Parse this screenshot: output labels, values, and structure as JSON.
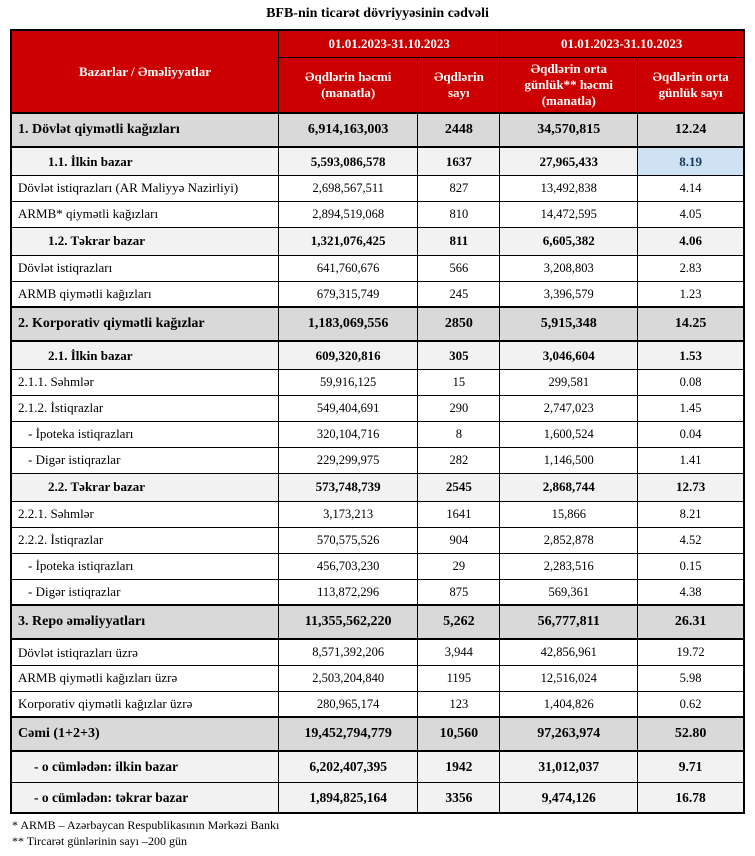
{
  "title": "BFB-nin ticarət dövriyyəsinin cədvəli",
  "colors": {
    "header_bg": "#CC0000",
    "header_text": "#FFFFFF",
    "section_bg": "#D9D9D9",
    "subsection_bg": "#F2F2F2",
    "highlight_bg": "#CFE2F3",
    "highlight_text": "#17375E",
    "border": "#000000"
  },
  "table": {
    "header": {
      "col_markets": "Bazarlar / Əməliyyatlar",
      "period1": "01.01.2023-31.10.2023",
      "period2": "01.01.2023-31.10.2023",
      "sub_volume": "Əqdlərin həcmi (manatla)",
      "sub_count": "Əqdlərin sayı",
      "sub_daily_volume": "Əqdlərin orta günlük** həcmi (manatla)",
      "sub_daily_count": "Əqdlərin orta günlük sayı"
    },
    "rows": [
      {
        "label": "1. Dövlət qiymətli kağızları",
        "values": [
          "6,914,163,003",
          "2448",
          "34,570,815",
          "12.24"
        ],
        "style": "section"
      },
      {
        "label": "1.1. İlkin bazar",
        "values": [
          "5,593,086,578",
          "1637",
          "27,965,433",
          "8.19"
        ],
        "style": "subsection",
        "highlight_last": true
      },
      {
        "label": "Dövlət istiqrazları (AR Maliyyə Nazirliyi)",
        "values": [
          "2,698,567,511",
          "827",
          "13,492,838",
          "4.14"
        ],
        "style": "normal"
      },
      {
        "label": "ARMB* qiymətli kağızları",
        "values": [
          "2,894,519,068",
          "810",
          "14,472,595",
          "4.05"
        ],
        "style": "normal"
      },
      {
        "label": "1.2. Təkrar bazar",
        "values": [
          "1,321,076,425",
          "811",
          "6,605,382",
          "4.06"
        ],
        "style": "subsection"
      },
      {
        "label": "Dövlət istiqrazları",
        "values": [
          "641,760,676",
          "566",
          "3,208,803",
          "2.83"
        ],
        "style": "normal"
      },
      {
        "label": "ARMB qiymətli kağızları",
        "values": [
          "679,315,749",
          "245",
          "3,396,579",
          "1.23"
        ],
        "style": "normal"
      },
      {
        "label": "2. Korporativ qiymətli kağızlar",
        "values": [
          "1,183,069,556",
          "2850",
          "5,915,348",
          "14.25"
        ],
        "style": "section"
      },
      {
        "label": "2.1. İlkin bazar",
        "values": [
          "609,320,816",
          "305",
          "3,046,604",
          "1.53"
        ],
        "style": "subsection"
      },
      {
        "label": "2.1.1. Səhmlər",
        "values": [
          "59,916,125",
          "15",
          "299,581",
          "0.08"
        ],
        "style": "normal"
      },
      {
        "label": "2.1.2. İstiqrazlar",
        "values": [
          "549,404,691",
          "290",
          "2,747,023",
          "1.45"
        ],
        "style": "normal"
      },
      {
        "label": "- İpoteka istiqrazları",
        "values": [
          "320,104,716",
          "8",
          "1,600,524",
          "0.04"
        ],
        "style": "indent"
      },
      {
        "label": "- Digər istiqrazlar",
        "values": [
          "229,299,975",
          "282",
          "1,146,500",
          "1.41"
        ],
        "style": "indent"
      },
      {
        "label": "2.2. Təkrar bazar",
        "values": [
          "573,748,739",
          "2545",
          "2,868,744",
          "12.73"
        ],
        "style": "subsection"
      },
      {
        "label": "2.2.1. Səhmlər",
        "values": [
          "3,173,213",
          "1641",
          "15,866",
          "8.21"
        ],
        "style": "normal"
      },
      {
        "label": "2.2.2. İstiqrazlar",
        "values": [
          "570,575,526",
          "904",
          "2,852,878",
          "4.52"
        ],
        "style": "normal"
      },
      {
        "label": "- İpoteka istiqrazları",
        "values": [
          "456,703,230",
          "29",
          "2,283,516",
          "0.15"
        ],
        "style": "indent"
      },
      {
        "label": "- Digər istiqrazlar",
        "values": [
          "113,872,296",
          "875",
          "569,361",
          "4.38"
        ],
        "style": "indent"
      },
      {
        "label": "3. Repo əməliyyatları",
        "values": [
          "11,355,562,220",
          "5,262",
          "56,777,811",
          "26.31"
        ],
        "style": "section"
      },
      {
        "label": "Dövlət istiqrazları üzrə",
        "values": [
          "8,571,392,206",
          "3,944",
          "42,856,961",
          "19.72"
        ],
        "style": "normal"
      },
      {
        "label": "ARMB qiymətli kağızları üzrə",
        "values": [
          "2,503,204,840",
          "1195",
          "12,516,024",
          "5.98"
        ],
        "style": "normal"
      },
      {
        "label": "Korporativ qiymətli kağızlar üzrə",
        "values": [
          "280,965,174",
          "123",
          "1,404,826",
          "0.62"
        ],
        "style": "normal"
      },
      {
        "label": "Cəmi (1+2+3)",
        "values": [
          "19,452,794,779",
          "10,560",
          "97,263,974",
          "52.80"
        ],
        "style": "section"
      },
      {
        "label": "- o cümlədən: ilkin bazar",
        "values": [
          "6,202,407,395",
          "1942",
          "31,012,037",
          "9.71"
        ],
        "style": "total"
      },
      {
        "label": "- o cümlədən: təkrar bazar",
        "values": [
          "1,894,825,164",
          "3356",
          "9,474,126",
          "16.78"
        ],
        "style": "total"
      }
    ],
    "footnotes": [
      "* ARMB – Azərbaycan Respublikasının Mərkəzi Bankı",
      "** Tircarət günlərinin sayı –200 gün"
    ]
  }
}
